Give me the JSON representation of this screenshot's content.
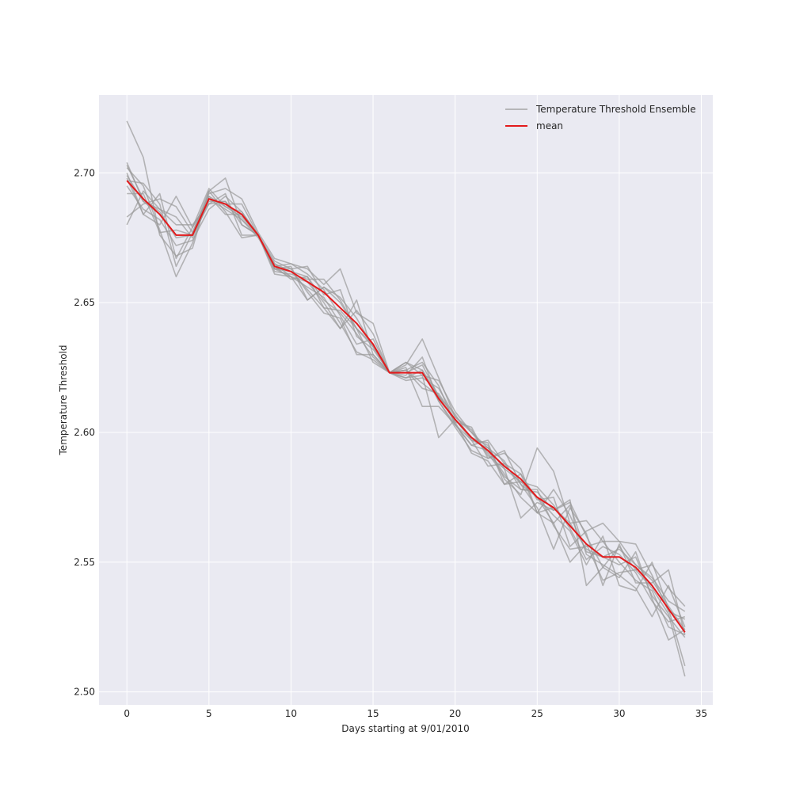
{
  "chart_data": {
    "type": "line",
    "title": "",
    "xlabel": "Days starting at 9/01/2010",
    "ylabel": "Temperature Threshold",
    "xlim": [
      -1.7,
      35.7
    ],
    "ylim": [
      2.495,
      2.73
    ],
    "xticks": [
      0,
      5,
      10,
      15,
      20,
      25,
      30,
      35
    ],
    "yticks": [
      2.5,
      2.55,
      2.6,
      2.65,
      2.7
    ],
    "ytick_labels": [
      "2.50",
      "2.55",
      "2.60",
      "2.65",
      "2.70"
    ],
    "grid": true,
    "legend_position": "top-right",
    "x": [
      0,
      1,
      2,
      3,
      4,
      5,
      6,
      7,
      8,
      9,
      10,
      11,
      12,
      13,
      14,
      15,
      16,
      17,
      18,
      19,
      20,
      21,
      22,
      23,
      24,
      25,
      26,
      27,
      28,
      29,
      30,
      31,
      32,
      33,
      34
    ],
    "ensemble_name": "Temperature Threshold Ensemble",
    "ensemble_color": "#9a9a9a",
    "mean": {
      "name": "mean",
      "color": "#e31a1c",
      "values": [
        2.697,
        2.69,
        2.684,
        2.676,
        2.676,
        2.69,
        2.688,
        2.684,
        2.676,
        2.664,
        2.662,
        2.658,
        2.654,
        2.648,
        2.642,
        2.634,
        2.623,
        2.623,
        2.623,
        2.613,
        2.605,
        2.598,
        2.593,
        2.587,
        2.582,
        2.575,
        2.571,
        2.564,
        2.557,
        2.552,
        2.552,
        2.548,
        2.541,
        2.532,
        2.523
      ]
    },
    "series": [
      {
        "values": [
          2.72,
          2.706,
          2.676,
          2.668,
          2.671,
          2.693,
          2.698,
          2.68,
          2.676,
          2.663,
          2.663,
          2.664,
          2.653,
          2.655,
          2.637,
          2.632,
          2.623,
          2.626,
          2.636,
          2.621,
          2.606,
          2.6,
          2.594,
          2.586,
          2.581,
          2.579,
          2.572,
          2.563,
          2.551,
          2.556,
          2.553,
          2.546,
          2.535,
          2.527,
          2.529
        ]
      },
      {
        "values": [
          2.703,
          2.69,
          2.685,
          2.675,
          2.676,
          2.692,
          2.694,
          2.69,
          2.677,
          2.667,
          2.665,
          2.663,
          2.657,
          2.663,
          2.646,
          2.642,
          2.623,
          2.627,
          2.622,
          2.598,
          2.605,
          2.598,
          2.595,
          2.582,
          2.576,
          2.594,
          2.585,
          2.565,
          2.566,
          2.558,
          2.558,
          2.549,
          2.544,
          2.535,
          2.531
        ]
      },
      {
        "values": [
          2.68,
          2.693,
          2.686,
          2.68,
          2.68,
          2.688,
          2.689,
          2.682,
          2.675,
          2.665,
          2.662,
          2.66,
          2.651,
          2.646,
          2.638,
          2.629,
          2.623,
          2.62,
          2.621,
          2.617,
          2.606,
          2.601,
          2.591,
          2.586,
          2.567,
          2.573,
          2.57,
          2.574,
          2.541,
          2.548,
          2.556,
          2.547,
          2.549,
          2.54,
          2.533
        ]
      },
      {
        "values": [
          2.702,
          2.695,
          2.678,
          2.66,
          2.673,
          2.691,
          2.684,
          2.684,
          2.676,
          2.663,
          2.664,
          2.651,
          2.656,
          2.65,
          2.64,
          2.634,
          2.623,
          2.625,
          2.61,
          2.61,
          2.603,
          2.595,
          2.593,
          2.584,
          2.575,
          2.569,
          2.565,
          2.55,
          2.557,
          2.543,
          2.546,
          2.547,
          2.54,
          2.53,
          2.506
        ]
      },
      {
        "values": [
          2.695,
          2.686,
          2.682,
          2.672,
          2.674,
          2.686,
          2.691,
          2.685,
          2.676,
          2.661,
          2.66,
          2.656,
          2.652,
          2.642,
          2.631,
          2.628,
          2.623,
          2.622,
          2.629,
          2.612,
          2.602,
          2.593,
          2.59,
          2.593,
          2.58,
          2.571,
          2.555,
          2.571,
          2.561,
          2.541,
          2.557,
          2.542,
          2.542,
          2.547,
          2.522
        ]
      },
      {
        "values": [
          2.692,
          2.692,
          2.677,
          2.678,
          2.676,
          2.688,
          2.692,
          2.676,
          2.676,
          2.662,
          2.661,
          2.659,
          2.659,
          2.651,
          2.64,
          2.627,
          2.623,
          2.623,
          2.626,
          2.614,
          2.604,
          2.592,
          2.589,
          2.58,
          2.584,
          2.574,
          2.575,
          2.556,
          2.562,
          2.565,
          2.558,
          2.557,
          2.545,
          2.531,
          2.528
        ]
      },
      {
        "values": [
          2.698,
          2.684,
          2.692,
          2.667,
          2.679,
          2.69,
          2.686,
          2.682,
          2.676,
          2.665,
          2.66,
          2.658,
          2.65,
          2.64,
          2.651,
          2.63,
          2.623,
          2.624,
          2.627,
          2.618,
          2.603,
          2.595,
          2.597,
          2.588,
          2.58,
          2.575,
          2.565,
          2.572,
          2.553,
          2.549,
          2.545,
          2.54,
          2.529,
          2.541,
          2.525
        ]
      },
      {
        "values": [
          2.683,
          2.688,
          2.69,
          2.687,
          2.677,
          2.693,
          2.685,
          2.675,
          2.676,
          2.664,
          2.665,
          2.661,
          2.655,
          2.645,
          2.634,
          2.636,
          2.623,
          2.624,
          2.617,
          2.615,
          2.605,
          2.597,
          2.594,
          2.589,
          2.578,
          2.578,
          2.564,
          2.555,
          2.556,
          2.558,
          2.55,
          2.543,
          2.539,
          2.525,
          2.522
        ]
      },
      {
        "values": [
          2.704,
          2.689,
          2.686,
          2.683,
          2.675,
          2.689,
          2.689,
          2.68,
          2.676,
          2.666,
          2.663,
          2.654,
          2.646,
          2.644,
          2.63,
          2.63,
          2.623,
          2.621,
          2.622,
          2.62,
          2.608,
          2.6,
          2.592,
          2.583,
          2.578,
          2.577,
          2.57,
          2.573,
          2.56,
          2.548,
          2.544,
          2.554,
          2.536,
          2.52,
          2.524
        ]
      },
      {
        "values": [
          2.7,
          2.684,
          2.68,
          2.691,
          2.679,
          2.694,
          2.687,
          2.685,
          2.676,
          2.664,
          2.659,
          2.66,
          2.648,
          2.647,
          2.64,
          2.633,
          2.623,
          2.627,
          2.624,
          2.612,
          2.603,
          2.597,
          2.587,
          2.588,
          2.584,
          2.569,
          2.578,
          2.568,
          2.554,
          2.552,
          2.549,
          2.552,
          2.537,
          2.529,
          2.521
        ]
      },
      {
        "values": [
          2.697,
          2.696,
          2.688,
          2.664,
          2.677,
          2.691,
          2.687,
          2.683,
          2.676,
          2.663,
          2.66,
          2.651,
          2.656,
          2.652,
          2.644,
          2.633,
          2.623,
          2.624,
          2.619,
          2.614,
          2.607,
          2.597,
          2.596,
          2.58,
          2.581,
          2.575,
          2.568,
          2.562,
          2.549,
          2.56,
          2.541,
          2.539,
          2.55,
          2.532,
          2.51
        ]
      },
      {
        "values": [
          2.699,
          2.689,
          2.684,
          2.676,
          2.676,
          2.69,
          2.688,
          2.688,
          2.676,
          2.663,
          2.662,
          2.655,
          2.648,
          2.64,
          2.647,
          2.638,
          2.623,
          2.621,
          2.624,
          2.614,
          2.604,
          2.602,
          2.59,
          2.592,
          2.586,
          2.569,
          2.571,
          2.565,
          2.555,
          2.552,
          2.555,
          2.549,
          2.543,
          2.533,
          2.524
        ]
      }
    ]
  }
}
